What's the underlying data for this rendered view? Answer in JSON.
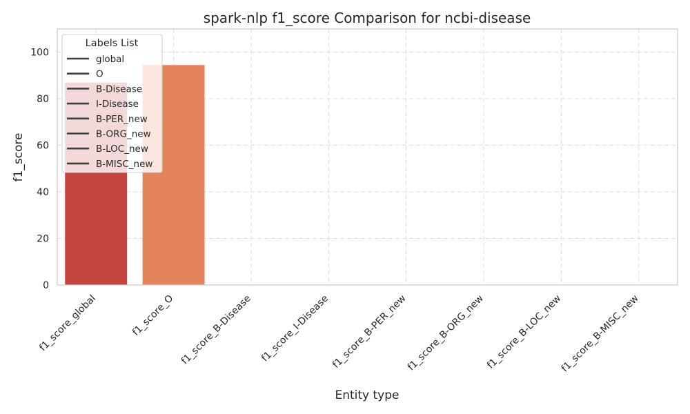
{
  "chart_data": {
    "type": "bar",
    "title": "spark-nlp f1_score Comparison for ncbi-disease",
    "xlabel": "Entity type",
    "ylabel": "f1_score",
    "ylim": [
      0,
      110
    ],
    "yticks": [
      0,
      20,
      40,
      60,
      80,
      100
    ],
    "grid": true,
    "categories": [
      "f1_score_global",
      "f1_score_O",
      "f1_score_B-Disease",
      "f1_score_I-Disease",
      "f1_score_B-PER_new",
      "f1_score_B-ORG_new",
      "f1_score_B-LOC_new",
      "f1_score_B-MISC_new"
    ],
    "values": [
      87,
      94.5,
      0,
      0,
      0,
      0,
      0,
      0
    ],
    "colors": [
      "#c44440",
      "#e4845d",
      "#f3a481",
      "#f8c3a5",
      "#fbdbc8",
      "#fcebe0",
      "#fdf3ec",
      "#fef8f4"
    ],
    "legend": {
      "title": "Labels List",
      "placement": "upper-left",
      "entries": [
        "global",
        "O",
        "B-Disease",
        "I-Disease",
        "B-PER_new",
        "B-ORG_new",
        "B-LOC_new",
        "B-MISC_new"
      ],
      "line_color": "#3d3d3d"
    }
  }
}
